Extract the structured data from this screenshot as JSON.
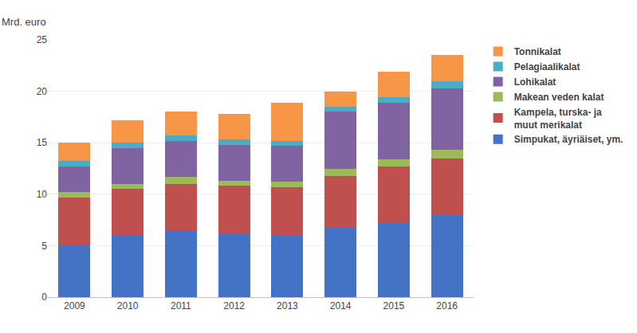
{
  "chart_data": {
    "type": "bar",
    "stacked": true,
    "categories": [
      "2009",
      "2010",
      "2011",
      "2012",
      "2013",
      "2014",
      "2015",
      "2016"
    ],
    "series": [
      {
        "name": "Simpukat, äyriäiset, ym.",
        "color": "#4472C4",
        "values": [
          5.0,
          6.0,
          6.5,
          6.1,
          6.0,
          6.8,
          7.2,
          8.0
        ]
      },
      {
        "name": "Kampela, turska- ja\nmuut merikalat",
        "color": "#C0504D",
        "values": [
          4.7,
          4.5,
          4.5,
          4.7,
          4.7,
          5.0,
          5.5,
          5.5
        ]
      },
      {
        "name": "Makean veden kalat",
        "color": "#9BBB59",
        "values": [
          0.5,
          0.5,
          0.7,
          0.5,
          0.5,
          0.7,
          0.7,
          0.8
        ]
      },
      {
        "name": "Lohikalat",
        "color": "#8064A2",
        "values": [
          2.5,
          3.5,
          3.5,
          3.5,
          3.5,
          5.5,
          5.5,
          6.0
        ]
      },
      {
        "name": "Pelagiaalikalat",
        "color": "#4BACC6",
        "values": [
          0.5,
          0.5,
          0.5,
          0.5,
          0.5,
          0.5,
          0.5,
          0.7
        ]
      },
      {
        "name": "Tonnikalat",
        "color": "#F79646",
        "values": [
          1.8,
          2.2,
          2.3,
          2.5,
          3.7,
          1.5,
          2.5,
          2.5
        ]
      }
    ],
    "ylabel": "Mrd. euro",
    "ylim": [
      0,
      25
    ],
    "yticks": [
      0,
      5,
      10,
      15,
      20,
      25
    ],
    "grid": true,
    "legend": "right"
  }
}
